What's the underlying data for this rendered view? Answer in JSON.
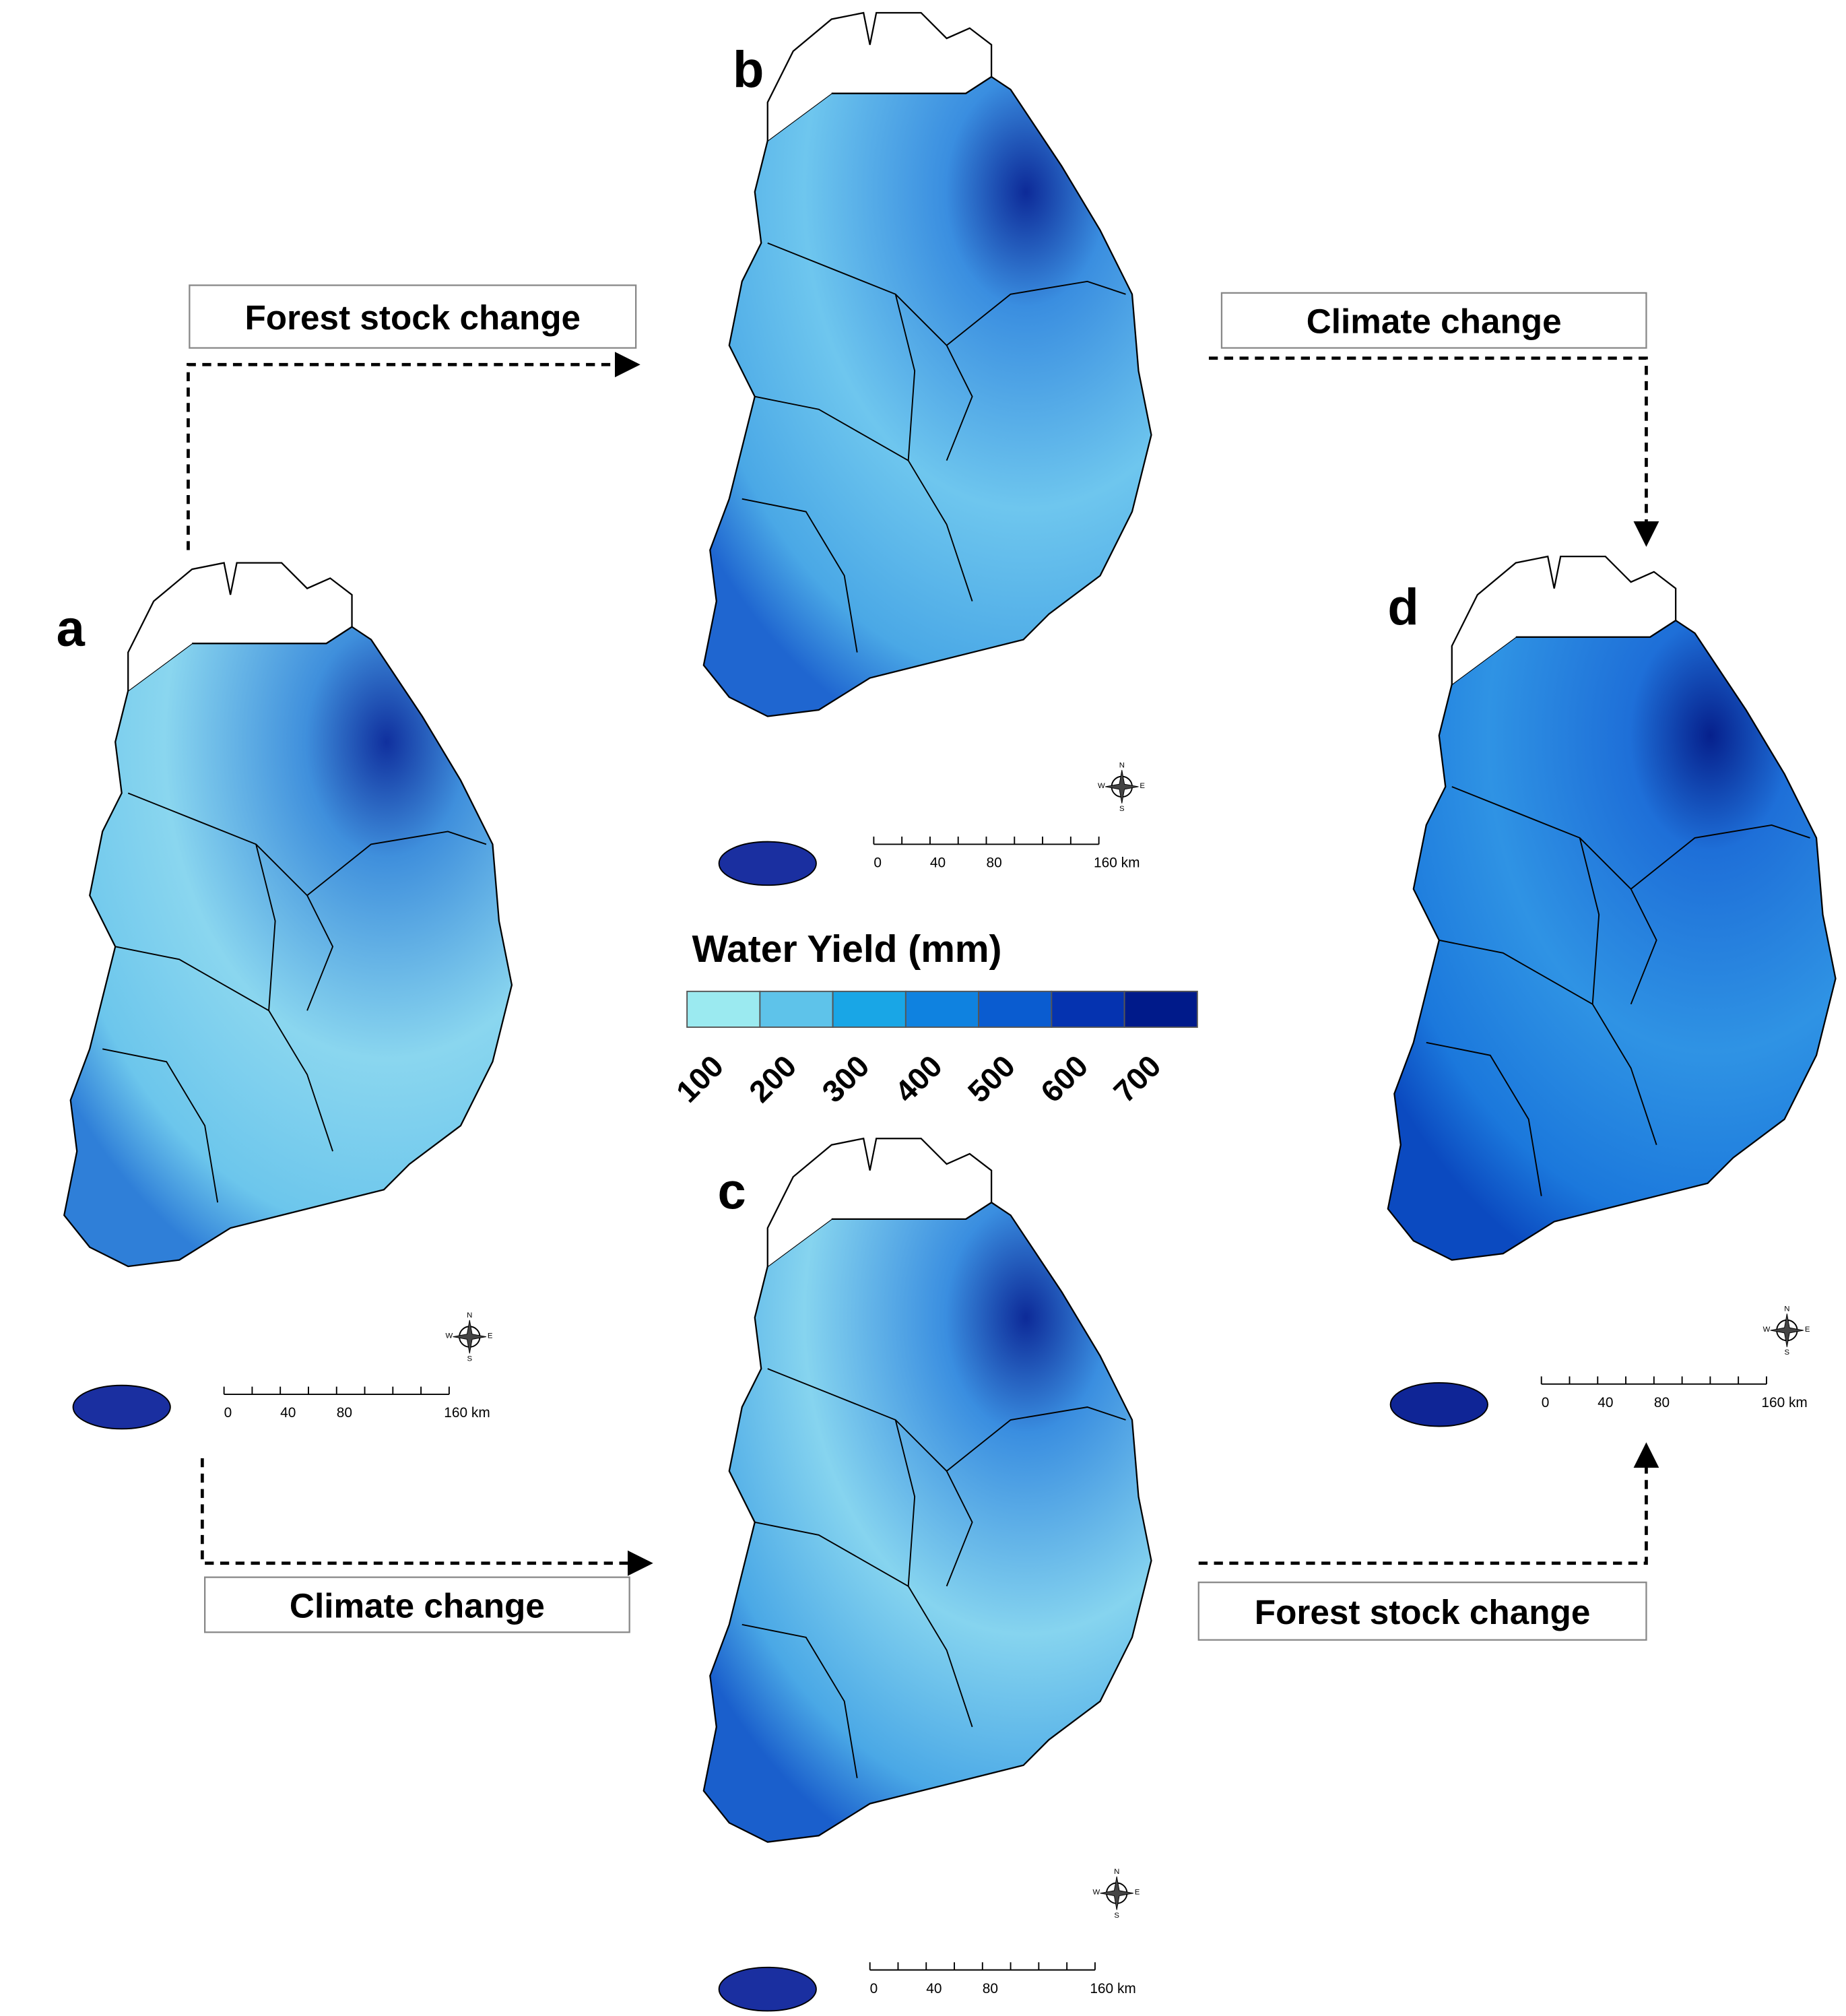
{
  "panels": [
    {
      "label": "a"
    },
    {
      "label": "b"
    },
    {
      "label": "c"
    },
    {
      "label": "d"
    }
  ],
  "transitions": [
    {
      "label": "Forest stock change"
    },
    {
      "label": "Climate change"
    },
    {
      "label": "Climate change"
    },
    {
      "label": "Forest stock change"
    }
  ],
  "legend": {
    "title": "Water Yield (mm)",
    "classes": [
      100,
      200,
      300,
      400,
      500,
      600,
      700
    ],
    "colors": [
      "#9beaf0",
      "#5ec3ea",
      "#19a6e6",
      "#0f82e0",
      "#0a5cd0",
      "#0533b0",
      "#001a8a"
    ]
  },
  "scale_bar": {
    "labels": [
      0,
      40,
      80,
      "160 km"
    ]
  },
  "compass": [
    "N",
    "E",
    "S",
    "W"
  ]
}
